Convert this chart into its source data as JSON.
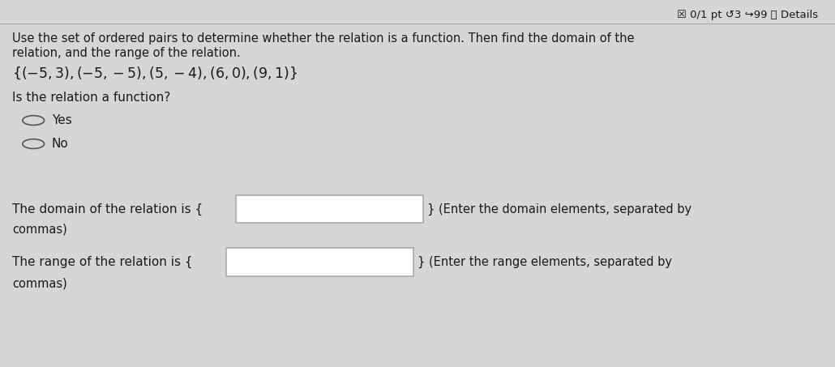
{
  "bg_color": "#d6d6d6",
  "header_text": "☒ 0/1 pt ↺3 ↪99 ⓘ Details",
  "instruction_line1": "Use the set of ordered pairs to determine whether the relation is a function. Then find the domain of the",
  "instruction_line2": "relation, and the range of the relation.",
  "ordered_pairs": "{(−5,  3), (−5, − 5), (5, −4), (6, 0), (9, 1)}",
  "question": "Is the relation a function?",
  "option_yes": "Yes",
  "option_no": "No",
  "domain_label": "The domain of the relation is {",
  "domain_suffix": "} (Enter the domain elements, separated by",
  "domain_suffix2": "commas)",
  "range_label": "The range of the relation is {",
  "range_suffix": "} (Enter the range elements, separated by",
  "range_suffix2": "commas)",
  "text_color": "#1a1a1a",
  "input_box_color": "#ffffff",
  "input_box_border": "#aaaaaa",
  "header_line_color": "#aaaaaa"
}
